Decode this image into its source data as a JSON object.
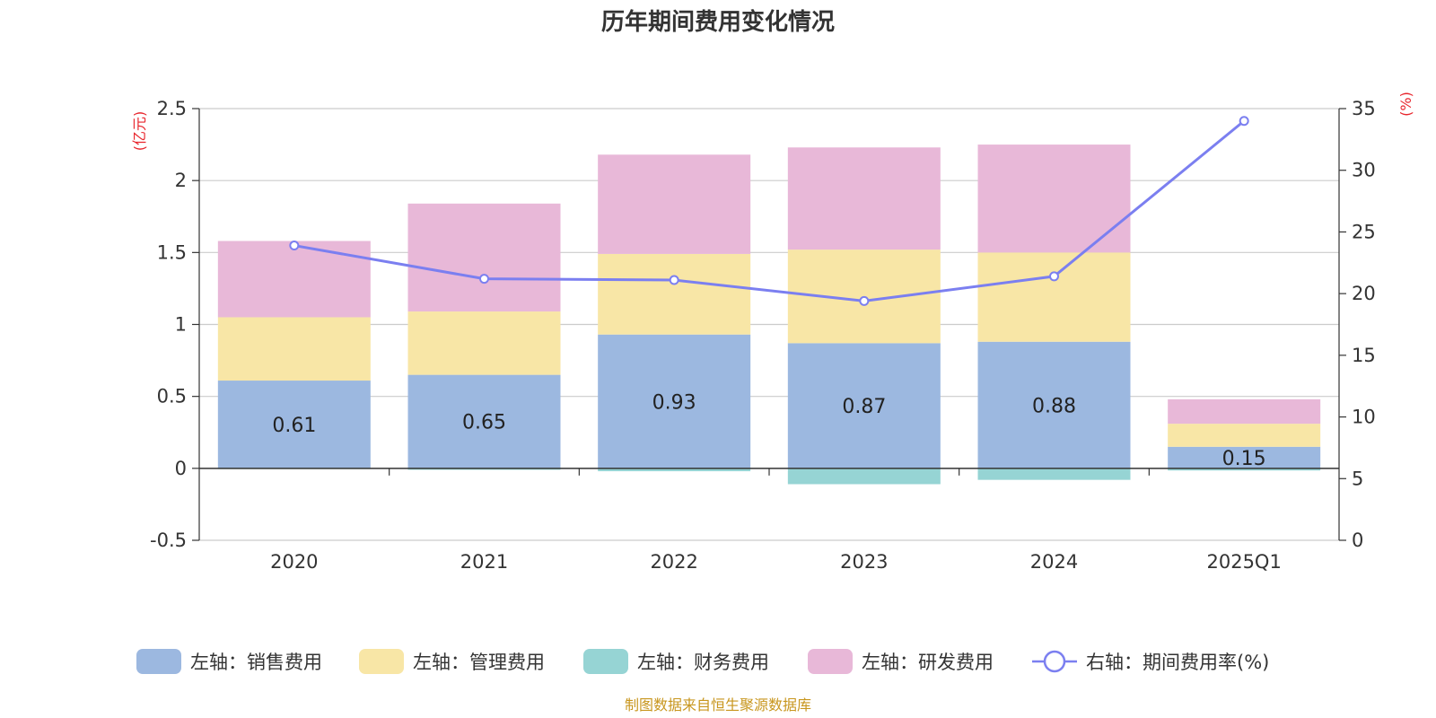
{
  "chart_data": {
    "type": "bar",
    "stacked": true,
    "title": "历年期间费用变化情况",
    "categories": [
      "2020",
      "2021",
      "2022",
      "2023",
      "2024",
      "2025Q1"
    ],
    "left_axis": {
      "unit": "(亿元)",
      "ylim": [
        -0.5,
        2.5
      ],
      "ticks": [
        -0.5,
        0,
        0.5,
        1,
        1.5,
        2,
        2.5
      ],
      "tick_labels": [
        "-0.5",
        "0",
        "0.5",
        "1",
        "1.5",
        "2",
        "2.5"
      ]
    },
    "right_axis": {
      "unit": "(%)",
      "ylim": [
        0,
        35
      ],
      "ticks": [
        0,
        5,
        10,
        15,
        20,
        25,
        30,
        35
      ],
      "tick_labels": [
        "0",
        "5",
        "10",
        "15",
        "20",
        "25",
        "30",
        "35"
      ]
    },
    "series": [
      {
        "name": "左轴：销售费用",
        "axis": "left",
        "type": "bar",
        "color": "#9cb8e0",
        "values": [
          0.61,
          0.65,
          0.93,
          0.87,
          0.88,
          0.15
        ],
        "data_labels": [
          "0.61",
          "0.65",
          "0.93",
          "0.87",
          "0.88",
          "0.15"
        ]
      },
      {
        "name": "左轴：管理费用",
        "axis": "left",
        "type": "bar",
        "color": "#f8e6a6",
        "values": [
          0.44,
          0.44,
          0.56,
          0.65,
          0.62,
          0.16
        ]
      },
      {
        "name": "左轴：财务费用",
        "axis": "left",
        "type": "bar",
        "color": "#96d4d4",
        "values": [
          -0.005,
          -0.01,
          -0.02,
          -0.11,
          -0.08,
          -0.015
        ]
      },
      {
        "name": "左轴：研发费用",
        "axis": "left",
        "type": "bar",
        "color": "#e8b8d8",
        "values": [
          0.53,
          0.75,
          0.69,
          0.71,
          0.75,
          0.17
        ]
      },
      {
        "name": "右轴：期间费用率(%)",
        "axis": "right",
        "type": "line",
        "color": "#7b7ff0",
        "values": [
          23.9,
          21.2,
          21.1,
          19.4,
          21.4,
          34.0
        ]
      }
    ],
    "legend_position": "bottom",
    "grid": true
  },
  "source": "制图数据来自恒生聚源数据库"
}
